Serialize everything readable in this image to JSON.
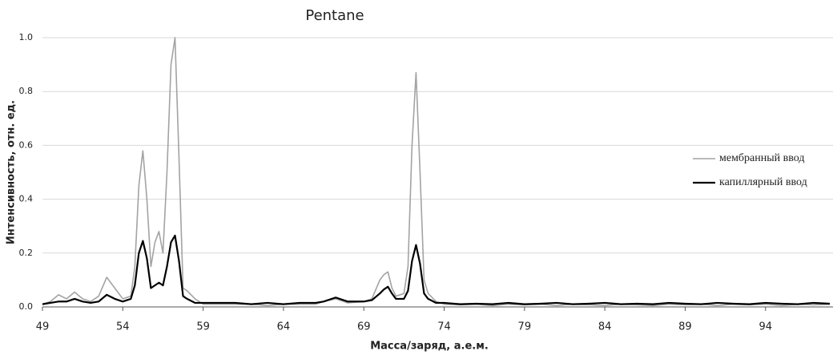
{
  "chart_data": {
    "type": "line",
    "title": "Pentane",
    "x_label": "Масса/заряд, а.е.м.",
    "y_label": "Интенсивность, отн. ед.",
    "x": [
      49,
      49.5,
      50,
      50.5,
      51,
      51.5,
      52,
      52.5,
      53,
      53.5,
      54,
      54.5,
      54.75,
      55,
      55.25,
      55.5,
      55.75,
      56,
      56.25,
      56.5,
      56.75,
      57,
      57.25,
      57.5,
      57.75,
      58,
      58.5,
      59,
      60,
      61,
      62,
      63,
      64,
      65,
      66,
      66.5,
      67.25,
      68,
      69,
      69.5,
      70,
      70.25,
      70.5,
      70.75,
      71,
      71.5,
      71.75,
      72,
      72.25,
      72.5,
      72.75,
      73,
      73.5,
      74,
      75,
      76,
      77,
      78,
      79,
      80,
      81,
      82,
      83,
      84,
      85,
      86,
      87,
      88,
      89,
      90,
      91,
      92,
      93,
      94,
      95,
      96,
      97,
      98
    ],
    "series": [
      {
        "name": "мембранный ввод",
        "color": "#a3a3a3",
        "values": [
          0.01,
          0.02,
          0.045,
          0.03,
          0.055,
          0.03,
          0.02,
          0.04,
          0.11,
          0.07,
          0.03,
          0.04,
          0.15,
          0.45,
          0.58,
          0.4,
          0.15,
          0.24,
          0.28,
          0.2,
          0.5,
          0.9,
          1.0,
          0.55,
          0.07,
          0.06,
          0.03,
          0.01,
          0.01,
          0.01,
          0.01,
          0.005,
          0.01,
          0.01,
          0.01,
          0.02,
          0.03,
          0.015,
          0.02,
          0.03,
          0.1,
          0.12,
          0.13,
          0.07,
          0.04,
          0.05,
          0.15,
          0.6,
          0.87,
          0.5,
          0.1,
          0.05,
          0.02,
          0.01,
          0.008,
          0.01,
          0.005,
          0.01,
          0.008,
          0.01,
          0.005,
          0.01,
          0.008,
          0.005,
          0.01,
          0.008,
          0.005,
          0.01,
          0.008,
          0.01,
          0.005,
          0.01,
          0.008,
          0.01,
          0.005,
          0.01,
          0.008,
          0.01
        ]
      },
      {
        "name": "капиллярный ввод",
        "color": "#000000",
        "values": [
          0.01,
          0.015,
          0.02,
          0.02,
          0.03,
          0.02,
          0.015,
          0.02,
          0.045,
          0.03,
          0.02,
          0.03,
          0.08,
          0.2,
          0.245,
          0.18,
          0.07,
          0.08,
          0.09,
          0.08,
          0.15,
          0.24,
          0.265,
          0.17,
          0.04,
          0.03,
          0.015,
          0.015,
          0.015,
          0.015,
          0.01,
          0.015,
          0.01,
          0.015,
          0.015,
          0.02,
          0.035,
          0.02,
          0.02,
          0.025,
          0.05,
          0.065,
          0.075,
          0.05,
          0.03,
          0.03,
          0.06,
          0.17,
          0.23,
          0.16,
          0.05,
          0.03,
          0.015,
          0.015,
          0.01,
          0.012,
          0.01,
          0.015,
          0.01,
          0.012,
          0.015,
          0.01,
          0.012,
          0.015,
          0.01,
          0.012,
          0.01,
          0.015,
          0.012,
          0.01,
          0.015,
          0.012,
          0.01,
          0.015,
          0.012,
          0.01,
          0.015,
          0.012
        ]
      }
    ],
    "xlim": [
      49,
      98.2
    ],
    "xticks": [
      49,
      54,
      59,
      64,
      69,
      74,
      79,
      84,
      89,
      94
    ],
    "ylim": [
      0,
      1.0
    ],
    "yticks": [
      {
        "value": 0,
        "label": "0.0"
      },
      0.2,
      0.4,
      0.6,
      0.8,
      {
        "value": 1.0,
        "label": "1.0"
      }
    ],
    "grid": true,
    "legend": "right"
  }
}
